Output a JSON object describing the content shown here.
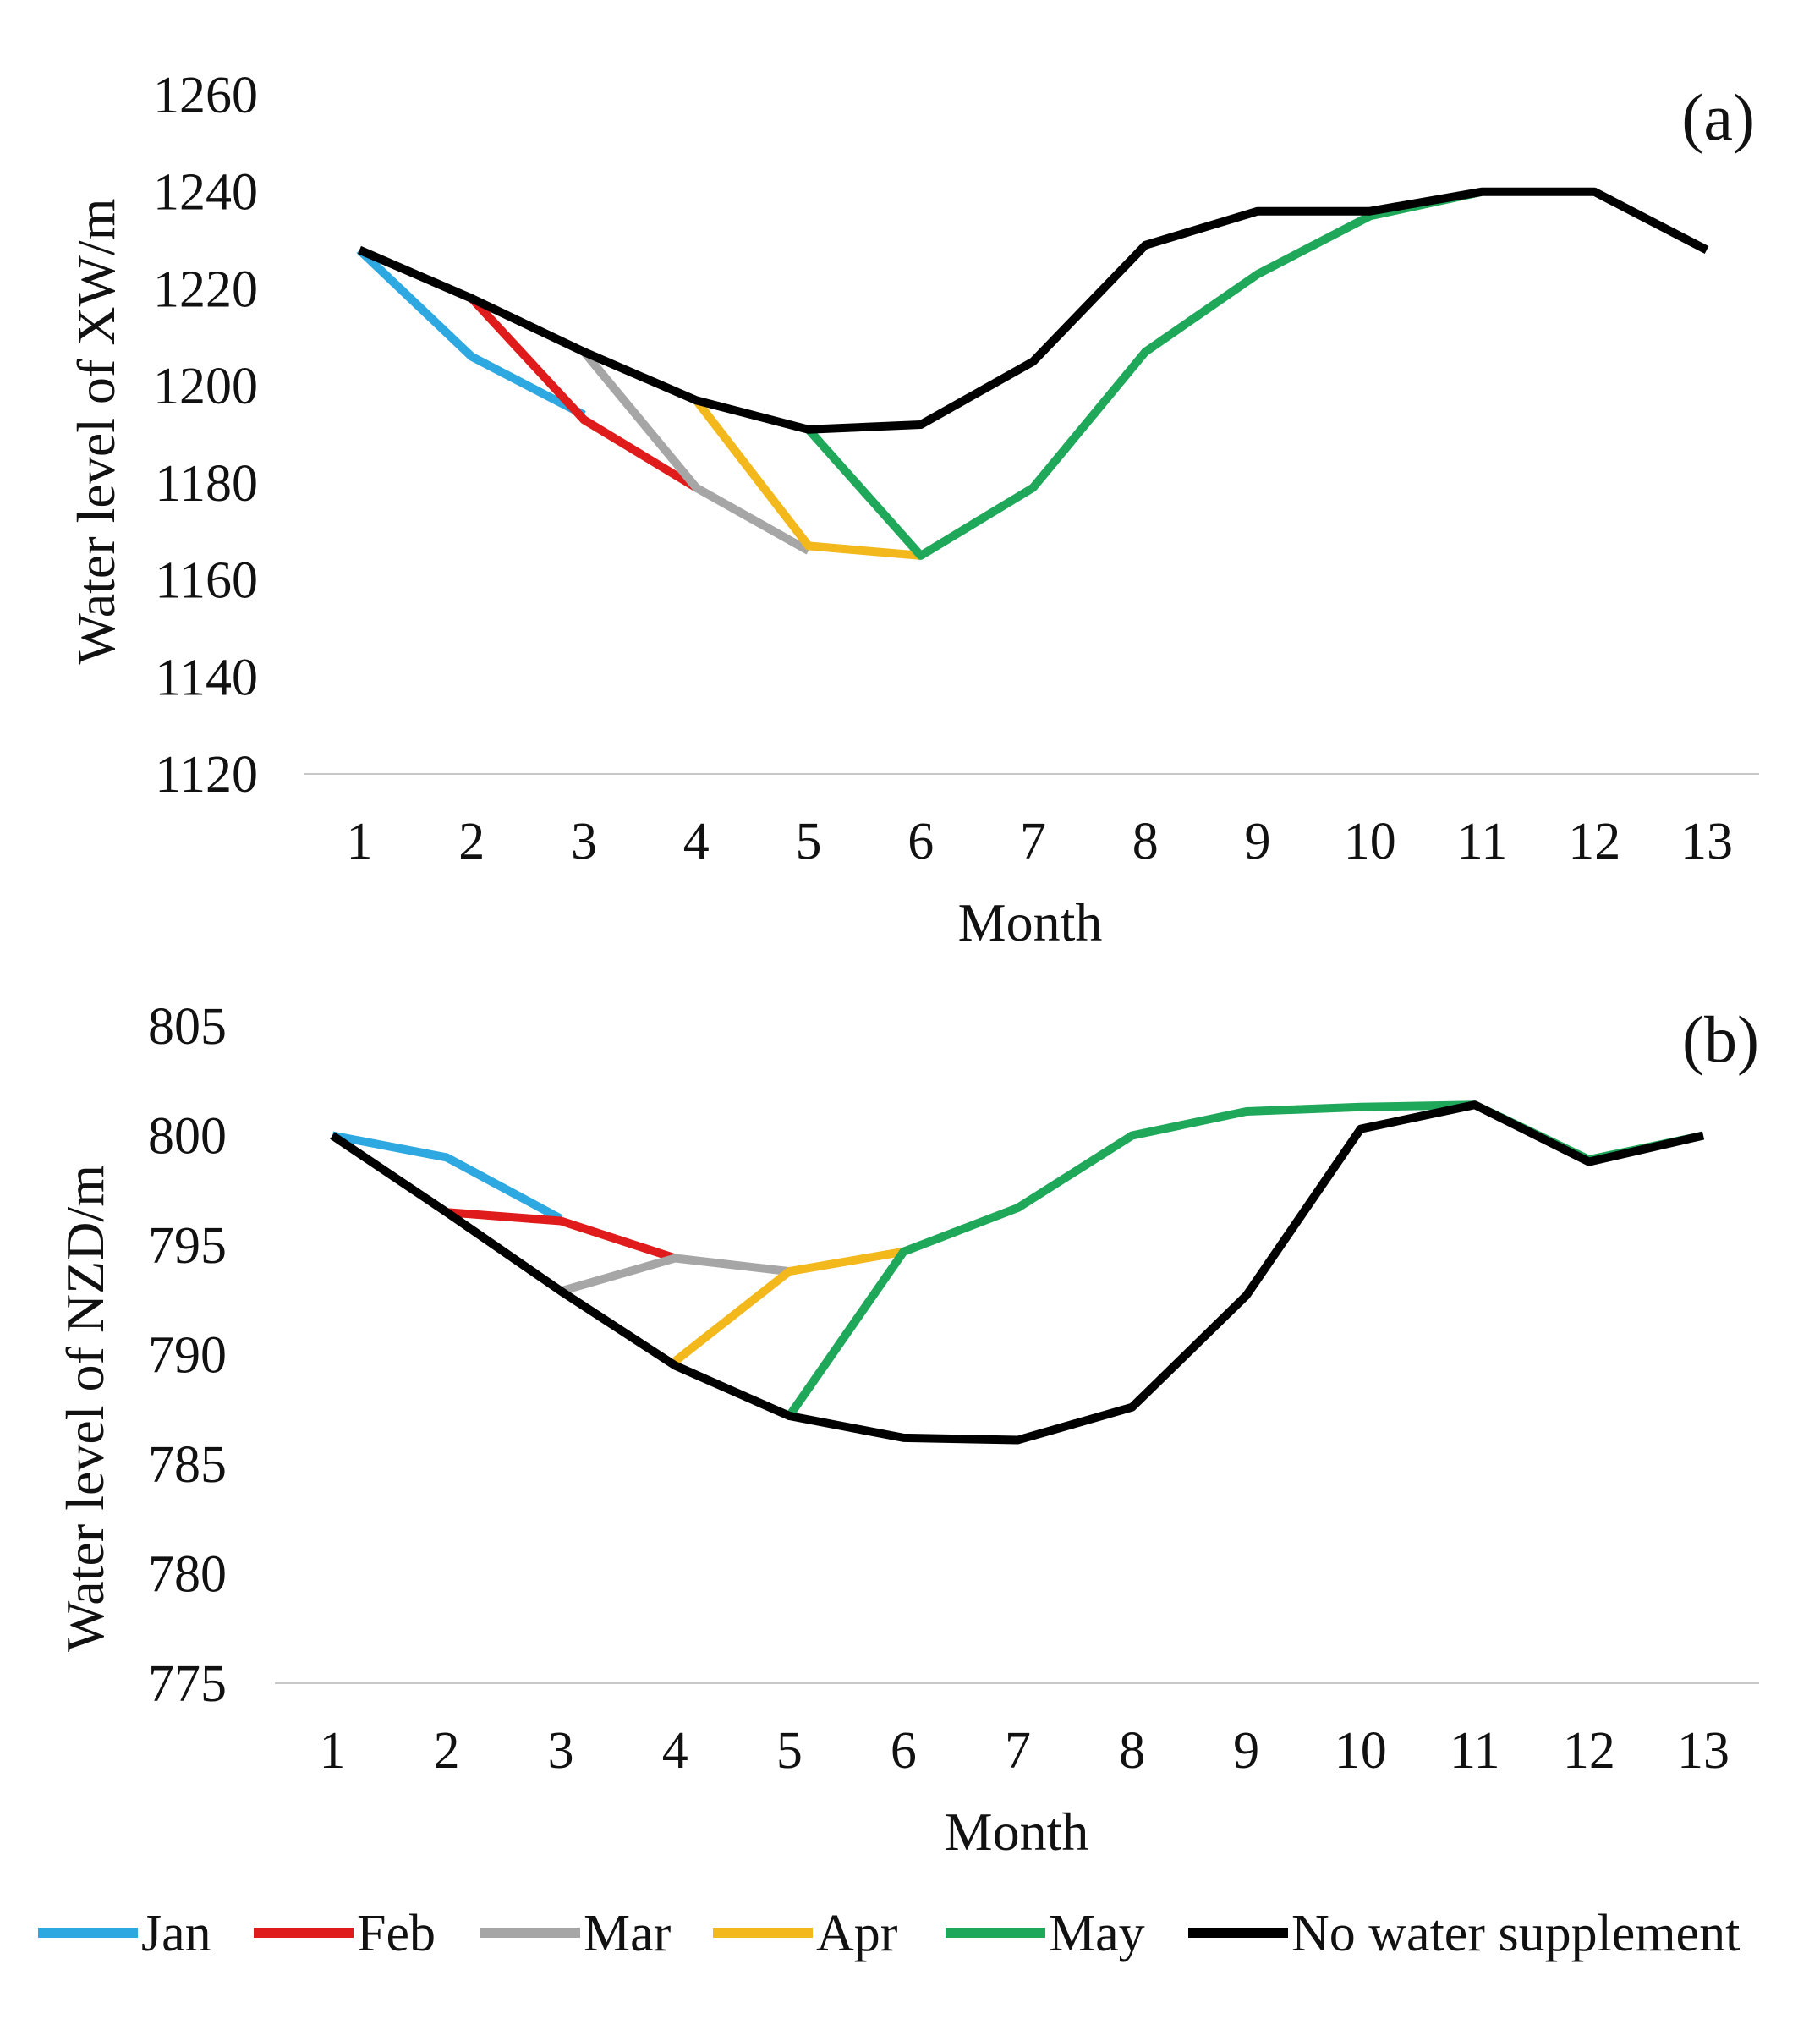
{
  "colors": {
    "Jan": "#2ea8e0",
    "Feb": "#e01b1b",
    "Mar": "#a6a6a6",
    "Apr": "#f2b81c",
    "May": "#1fa85a",
    "No water supplement": "#000000"
  },
  "legend": {
    "items": [
      {
        "label": "Jan",
        "color": "#2ea8e0"
      },
      {
        "label": "Feb",
        "color": "#e01b1b"
      },
      {
        "label": "Mar",
        "color": "#a6a6a6"
      },
      {
        "label": "Apr",
        "color": "#f2b81c"
      },
      {
        "label": "May",
        "color": "#1fa85a"
      },
      {
        "label": "No water supplement",
        "color": "#000000"
      }
    ]
  },
  "chart_data": [
    {
      "type": "line",
      "panel_label": "(a)",
      "xlabel": "Month",
      "ylabel": "Water level of XW/m",
      "x": [
        1,
        2,
        3,
        4,
        5,
        6,
        7,
        8,
        9,
        10,
        11,
        12,
        13
      ],
      "x_tick_labels": [
        "1",
        "2",
        "3",
        "4",
        "5",
        "6",
        "7",
        "8",
        "9",
        "10",
        "11",
        "12",
        "13"
      ],
      "ylim": [
        1120,
        1260
      ],
      "y_ticks": [
        1120,
        1140,
        1160,
        1180,
        1200,
        1220,
        1240,
        1260
      ],
      "y_tick_labels": [
        "1120",
        "1140",
        "1160",
        "1180",
        "1200",
        "1220",
        "1240",
        "1260"
      ],
      "series": [
        {
          "name": "Jan",
          "x": [
            1,
            2,
            3
          ],
          "values": [
            1228,
            1206,
            1194
          ]
        },
        {
          "name": "Feb",
          "x": [
            2,
            3,
            4
          ],
          "values": [
            1218,
            1193,
            1179
          ]
        },
        {
          "name": "Mar",
          "x": [
            3,
            4,
            5
          ],
          "values": [
            1207,
            1179,
            1166
          ]
        },
        {
          "name": "Apr",
          "x": [
            4,
            5,
            6
          ],
          "values": [
            1197,
            1167,
            1165
          ]
        },
        {
          "name": "May",
          "x": [
            5,
            6,
            7,
            8,
            9,
            10,
            11
          ],
          "values": [
            1191,
            1165,
            1179,
            1207,
            1223,
            1235,
            1240
          ]
        },
        {
          "name": "No water supplement",
          "x": [
            1,
            2,
            3,
            4,
            5,
            6,
            7,
            8,
            9,
            10,
            11,
            12,
            13
          ],
          "values": [
            1228,
            1218,
            1207,
            1197,
            1191,
            1192,
            1205,
            1229,
            1236,
            1236,
            1240,
            1240,
            1228
          ]
        }
      ]
    },
    {
      "type": "line",
      "panel_label": "(b)",
      "xlabel": "Month",
      "ylabel": "Water level of NZD/m",
      "x": [
        1,
        2,
        3,
        4,
        5,
        6,
        7,
        8,
        9,
        10,
        11,
        12,
        13
      ],
      "x_tick_labels": [
        "1",
        "2",
        "3",
        "4",
        "5",
        "6",
        "7",
        "8",
        "9",
        "10",
        "11",
        "12",
        "13"
      ],
      "ylim": [
        775,
        805
      ],
      "y_ticks": [
        775,
        780,
        785,
        790,
        795,
        800,
        805
      ],
      "y_tick_labels": [
        "775",
        "780",
        "785",
        "790",
        "795",
        "800",
        "805"
      ],
      "series": [
        {
          "name": "Jan",
          "x": [
            1,
            2,
            3
          ],
          "values": [
            800,
            799,
            796.2
          ]
        },
        {
          "name": "Feb",
          "x": [
            2,
            3,
            4
          ],
          "values": [
            796.5,
            796.1,
            794.4
          ]
        },
        {
          "name": "Mar",
          "x": [
            3,
            4,
            5
          ],
          "values": [
            792.9,
            794.4,
            793.8
          ]
        },
        {
          "name": "Apr",
          "x": [
            4,
            5,
            6
          ],
          "values": [
            789.7,
            793.8,
            794.7
          ]
        },
        {
          "name": "May",
          "x": [
            5,
            6,
            7,
            8,
            9,
            10,
            11,
            12,
            13
          ],
          "values": [
            787.2,
            794.7,
            796.7,
            800,
            801.1,
            801.3,
            801.4,
            798.9,
            800
          ]
        },
        {
          "name": "No water supplement",
          "x": [
            1,
            2,
            3,
            4,
            5,
            6,
            7,
            8,
            9,
            10,
            11,
            12,
            13
          ],
          "values": [
            800,
            796.5,
            792.9,
            789.5,
            787.2,
            786.2,
            786.1,
            787.6,
            792.7,
            800.3,
            801.4,
            798.8,
            800
          ]
        }
      ]
    }
  ]
}
